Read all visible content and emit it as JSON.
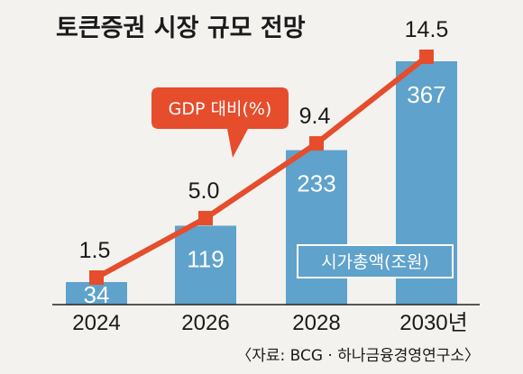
{
  "title": "토큰증권 시장 규모 전망",
  "source": "〈자료: BCG · 하나금융경영연구소〉",
  "colors": {
    "background": "#f3f2ef",
    "bar": "#5fa2cb",
    "line": "#e54d2c",
    "marker": "#e54d2c",
    "text": "#1a1a1a"
  },
  "chart_data": {
    "type": "bar",
    "categories": [
      "2024",
      "2026",
      "2028",
      "2030년"
    ],
    "series": [
      {
        "name": "시가총액(조원)",
        "type": "bar",
        "values": [
          34,
          119,
          233,
          367
        ]
      },
      {
        "name": "GDP 대비(%)",
        "type": "line",
        "values": [
          1.5,
          5.0,
          9.4,
          14.5
        ]
      }
    ],
    "legend": {
      "bar": "시가총액(조원)",
      "line": "GDP 대비(%)"
    },
    "grid": false
  }
}
